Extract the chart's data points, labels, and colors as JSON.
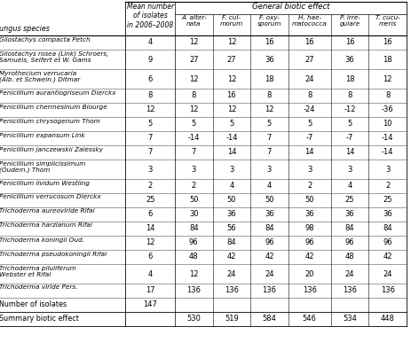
{
  "rows": [
    [
      "Gliostachys compacta Petch",
      "4",
      "12",
      "12",
      "16",
      "16",
      "16",
      "16"
    ],
    [
      "Gliostachys rosea (Link) Schroers,\nSamuels, Seifert et W. Gams",
      "9",
      "27",
      "27",
      "36",
      "27",
      "36",
      "18"
    ],
    [
      "Myrothecium verrucaria\n(Alb. et Schwein.) Ditmar",
      "6",
      "12",
      "12",
      "18",
      "24",
      "18",
      "12"
    ],
    [
      "Penicillium aurantiogriseum Dierckx",
      "8",
      "8",
      "16",
      "8",
      "8",
      "8",
      "8"
    ],
    [
      "Penicillium chermesinum Biourge",
      "12",
      "12",
      "12",
      "12",
      "-24",
      "-12",
      "-36"
    ],
    [
      "Penicillium chrysogenum Thom",
      "5",
      "5",
      "5",
      "5",
      "5",
      "5",
      "10"
    ],
    [
      "Penicillium expansum Link",
      "7",
      "-14",
      "-14",
      "7",
      "-7",
      "-7",
      "-14"
    ],
    [
      "Penicillium janczewskii Zalessky",
      "7",
      "7",
      "14",
      "7",
      "14",
      "14",
      "-14"
    ],
    [
      "Penicillium simplicissimum\n(Oudem.) Thom",
      "3",
      "3",
      "3",
      "3",
      "3",
      "3",
      "3"
    ],
    [
      "Penicillium lividum Westling",
      "2",
      "2",
      "4",
      "4",
      "2",
      "4",
      "2"
    ],
    [
      "Penicillium verrucosum Dierckx",
      "25",
      "50",
      "50",
      "50",
      "50",
      "25",
      "25"
    ],
    [
      "Trichoderma aureoviride Rifai",
      "6",
      "30",
      "36",
      "36",
      "36",
      "36",
      "36"
    ],
    [
      "Trichoderma harzianum Rifai",
      "14",
      "84",
      "56",
      "84",
      "98",
      "84",
      "84"
    ],
    [
      "Trichoderma koningii Oud.",
      "12",
      "96",
      "84",
      "96",
      "96",
      "96",
      "96"
    ],
    [
      "Trichoderma pseudokoningii Rifai",
      "6",
      "48",
      "42",
      "42",
      "42",
      "48",
      "42"
    ],
    [
      "Trichoderma piluliferum\nWebster et Rifai",
      "4",
      "12",
      "24",
      "24",
      "20",
      "24",
      "24"
    ],
    [
      "Trichoderma viride Pers.",
      "17",
      "136",
      "136",
      "136",
      "136",
      "136",
      "136"
    ]
  ],
  "footer_rows": [
    [
      "Number of isolates",
      "147",
      "",
      "",
      "",
      "",
      "",
      ""
    ],
    [
      "Summary biotic effect",
      "",
      "530",
      "519",
      "584",
      "546",
      "534",
      "448"
    ]
  ],
  "col_header1": "Mean number\nof isolates\nin 2006–2008",
  "biotic_header": "General biotic effect",
  "biotic_col_labels": [
    "A. alter-\nnata",
    "F. cul-\nmorum",
    "F. oxy-\nsporum",
    "H. hae-\nmatococca",
    "P. irre-\ngulare",
    "T. cucu-\nmeris"
  ],
  "fungus_label": "ungus species",
  "two_line_rows": [
    1,
    2,
    8,
    15
  ]
}
